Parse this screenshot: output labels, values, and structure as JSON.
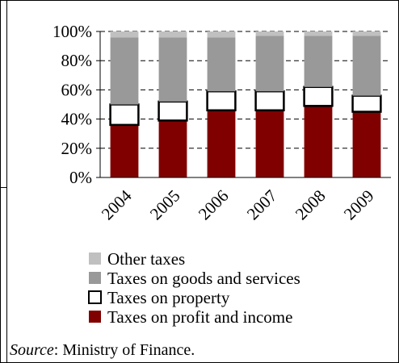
{
  "chart_data": {
    "type": "bar",
    "stacked": true,
    "percent": true,
    "categories": [
      "2004",
      "2005",
      "2006",
      "2007",
      "2008",
      "2009"
    ],
    "yticks": [
      "0%",
      "20%",
      "40%",
      "60%",
      "80%",
      "100%"
    ],
    "ylim": [
      0,
      100
    ],
    "grid": true,
    "legend_position": "bottom",
    "series": [
      {
        "name": "Taxes on profit and income",
        "color": "#800000",
        "values": [
          36,
          39,
          46,
          46,
          49,
          45
        ]
      },
      {
        "name": "Taxes on property",
        "color": "#ffffff",
        "values": [
          14,
          13,
          13,
          13,
          13,
          11
        ]
      },
      {
        "name": "Taxes on goods and services",
        "color": "#999999",
        "values": [
          46,
          44,
          37,
          38,
          35,
          41
        ]
      },
      {
        "name": "Other taxes",
        "color": "#c0c0c0",
        "values": [
          4,
          4,
          4,
          3,
          3,
          3
        ]
      }
    ]
  },
  "source": {
    "prefix": "Source",
    "text": ": Ministry of Finance."
  }
}
